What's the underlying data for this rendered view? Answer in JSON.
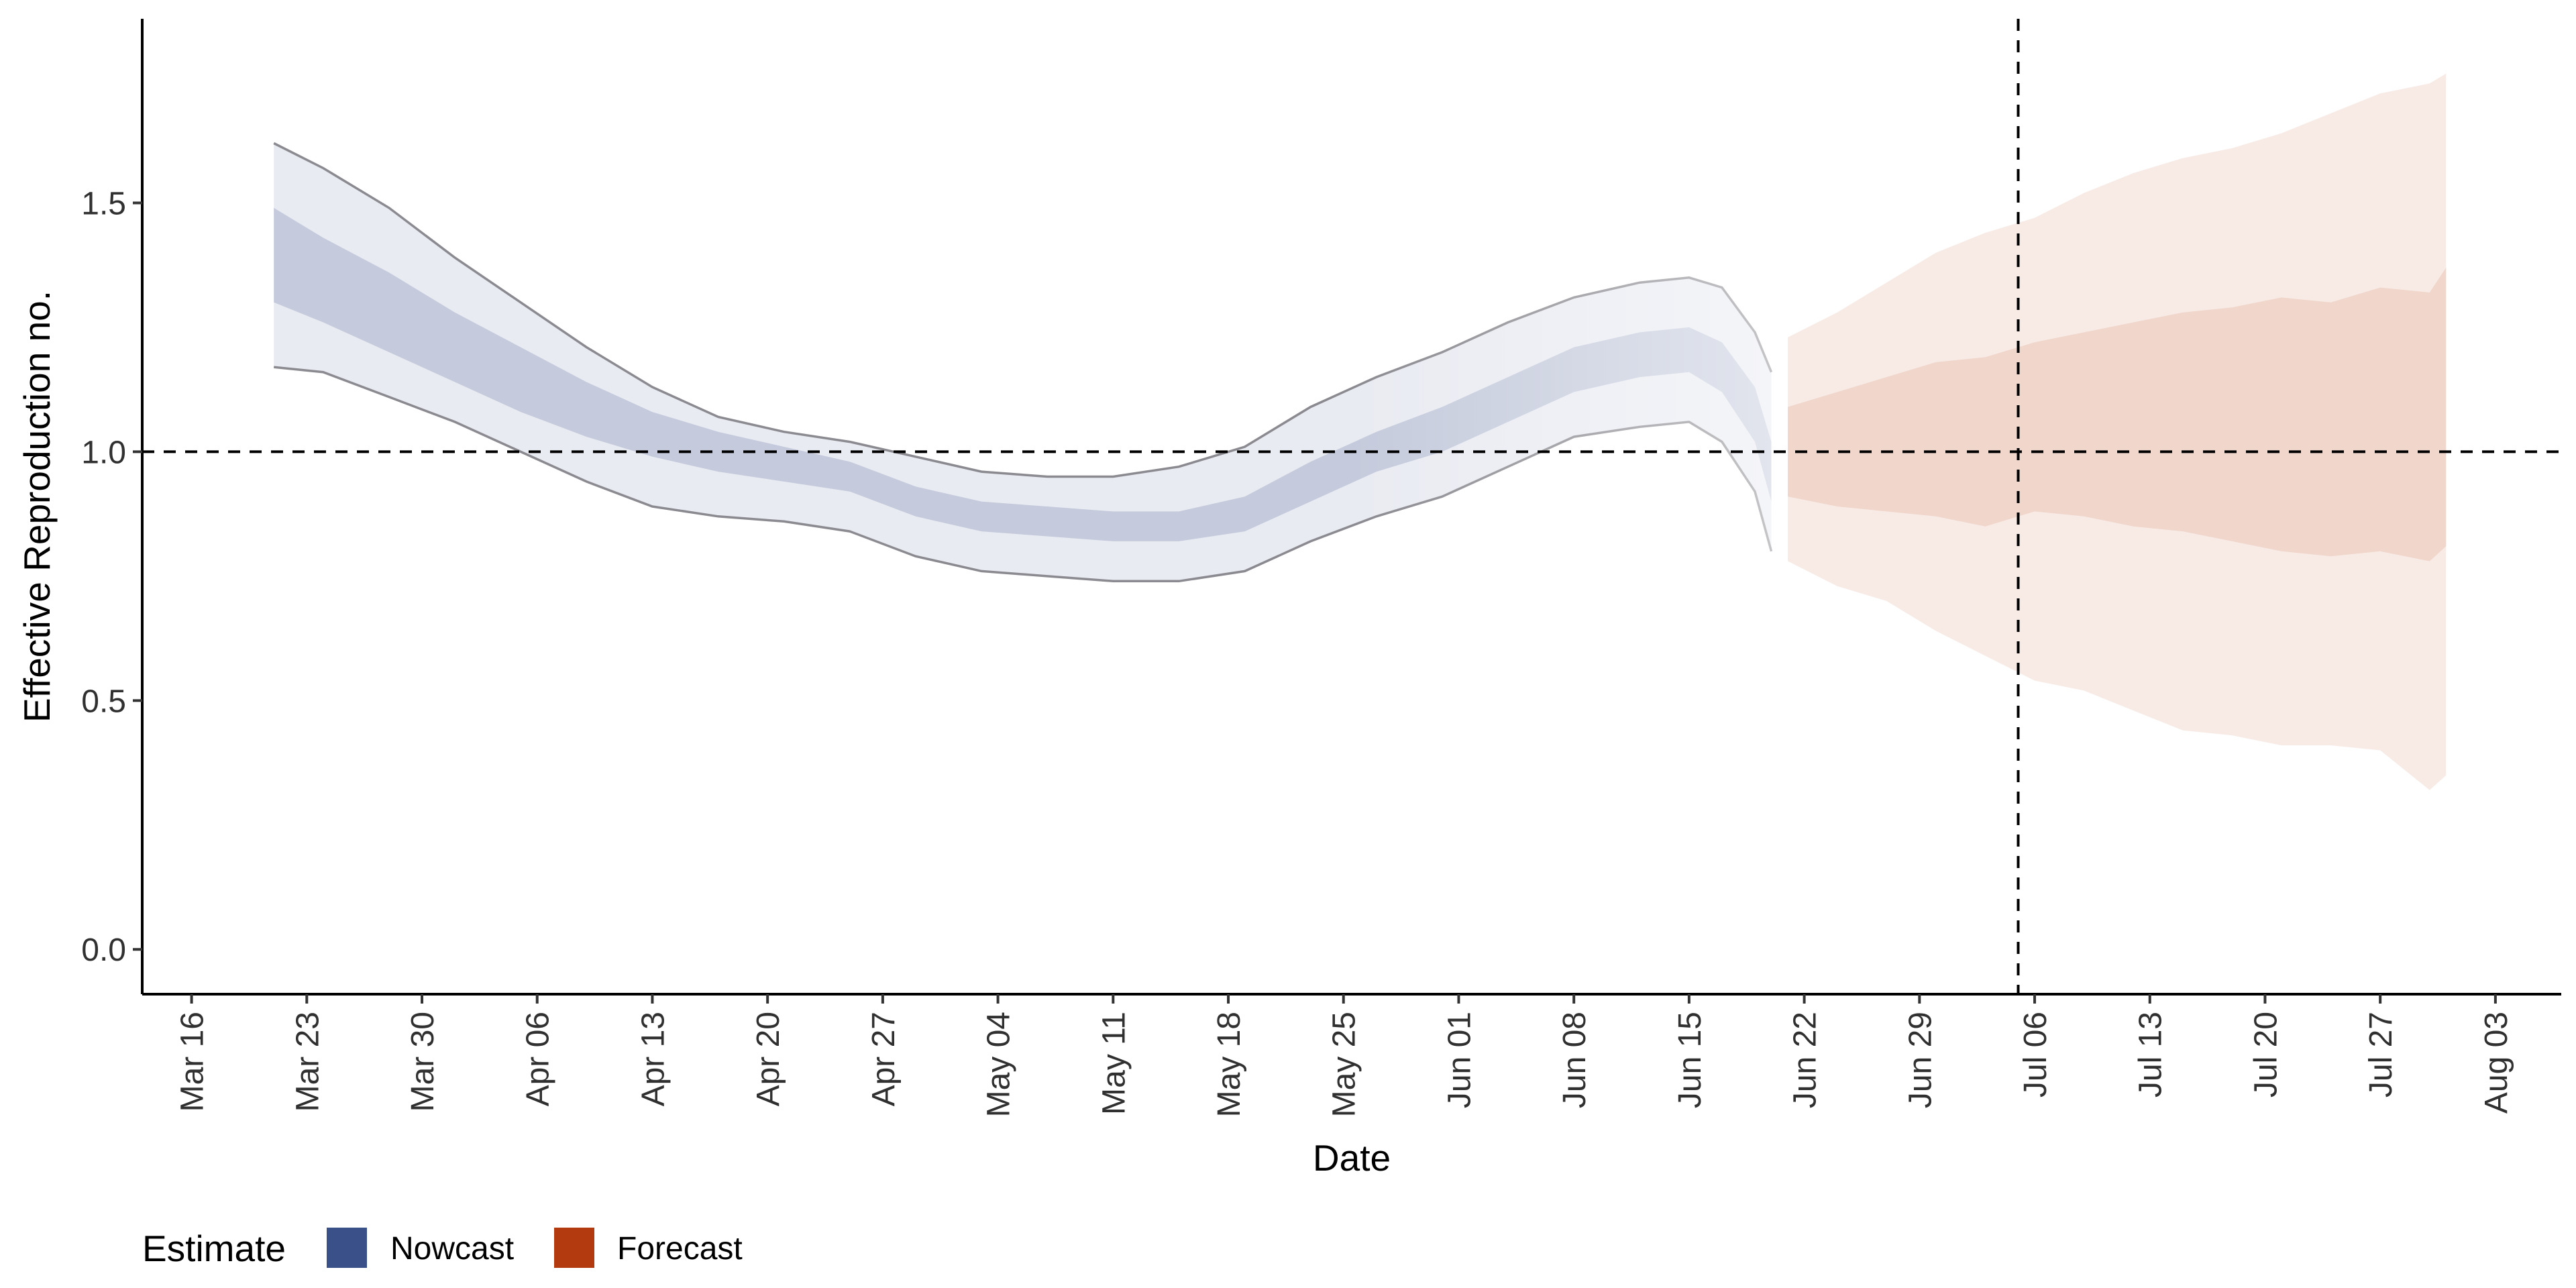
{
  "chart_data": {
    "type": "area",
    "title": "",
    "xlabel": "Date",
    "ylabel": "Effective Reproduction no.",
    "x_axis": {
      "type": "date",
      "year": 2020,
      "range": [
        "2020-03-13",
        "2020-08-07"
      ],
      "ticks": [
        "2020-03-16",
        "2020-03-23",
        "2020-03-30",
        "2020-04-06",
        "2020-04-13",
        "2020-04-20",
        "2020-04-27",
        "2020-05-04",
        "2020-05-11",
        "2020-05-18",
        "2020-05-25",
        "2020-06-01",
        "2020-06-08",
        "2020-06-15",
        "2020-06-22",
        "2020-06-29",
        "2020-07-06",
        "2020-07-13",
        "2020-07-20",
        "2020-07-27",
        "2020-08-03"
      ],
      "tick_labels": [
        "Mar 16",
        "Mar 23",
        "Mar 30",
        "Apr 06",
        "Apr 13",
        "Apr 20",
        "Apr 27",
        "May 04",
        "May 11",
        "May 18",
        "May 25",
        "Jun 01",
        "Jun 08",
        "Jun 15",
        "Jun 22",
        "Jun 29",
        "Jul 06",
        "Jul 13",
        "Jul 20",
        "Jul 27",
        "Aug 03"
      ]
    },
    "y_axis": {
      "range": [
        -0.09,
        1.87
      ],
      "ticks": [
        0.0,
        0.5,
        1.0,
        1.5
      ],
      "tick_labels": [
        "0.0",
        "0.5",
        "1.0",
        "1.5"
      ]
    },
    "grid": false,
    "reference_lines": [
      {
        "axis": "y",
        "value": 1.0,
        "style": "dashed"
      },
      {
        "axis": "x",
        "value": "2020-07-05",
        "style": "dashed"
      }
    ],
    "legend": {
      "title": "Estimate",
      "position": "bottom-left",
      "entries": [
        {
          "name": "Nowcast",
          "color": "#3a5089"
        },
        {
          "name": "Forecast",
          "color": "#b33a0f"
        }
      ]
    },
    "series": [
      {
        "name": "Nowcast",
        "color": "#3a5089",
        "x": [
          "2020-03-21",
          "2020-03-24",
          "2020-03-28",
          "2020-04-01",
          "2020-04-05",
          "2020-04-09",
          "2020-04-13",
          "2020-04-17",
          "2020-04-21",
          "2020-04-25",
          "2020-04-29",
          "2020-05-03",
          "2020-05-07",
          "2020-05-11",
          "2020-05-15",
          "2020-05-19",
          "2020-05-23",
          "2020-05-27",
          "2020-05-31",
          "2020-06-04",
          "2020-06-08",
          "2020-06-12",
          "2020-06-15",
          "2020-06-17",
          "2020-06-19",
          "2020-06-20"
        ],
        "lower_90": [
          1.17,
          1.16,
          1.11,
          1.06,
          1.0,
          0.94,
          0.89,
          0.87,
          0.86,
          0.84,
          0.79,
          0.76,
          0.75,
          0.74,
          0.74,
          0.76,
          0.82,
          0.87,
          0.91,
          0.97,
          1.03,
          1.05,
          1.06,
          1.02,
          0.92,
          0.8
        ],
        "lower_50": [
          1.3,
          1.26,
          1.2,
          1.14,
          1.08,
          1.03,
          0.99,
          0.96,
          0.94,
          0.92,
          0.87,
          0.84,
          0.83,
          0.82,
          0.82,
          0.84,
          0.9,
          0.96,
          1.0,
          1.06,
          1.12,
          1.15,
          1.16,
          1.12,
          1.02,
          0.9
        ],
        "upper_50": [
          1.49,
          1.43,
          1.36,
          1.28,
          1.21,
          1.14,
          1.08,
          1.04,
          1.01,
          0.98,
          0.93,
          0.9,
          0.89,
          0.88,
          0.88,
          0.91,
          0.98,
          1.04,
          1.09,
          1.15,
          1.21,
          1.24,
          1.25,
          1.22,
          1.13,
          1.02
        ],
        "upper_90": [
          1.62,
          1.57,
          1.49,
          1.39,
          1.3,
          1.21,
          1.13,
          1.07,
          1.04,
          1.02,
          0.99,
          0.96,
          0.95,
          0.95,
          0.97,
          1.01,
          1.09,
          1.15,
          1.2,
          1.26,
          1.31,
          1.34,
          1.35,
          1.33,
          1.24,
          1.16
        ]
      },
      {
        "name": "Forecast",
        "color": "#b33a0f",
        "x": [
          "2020-06-21",
          "2020-06-24",
          "2020-06-27",
          "2020-06-30",
          "2020-07-03",
          "2020-07-06",
          "2020-07-09",
          "2020-07-12",
          "2020-07-15",
          "2020-07-18",
          "2020-07-21",
          "2020-07-24",
          "2020-07-27",
          "2020-07-30",
          "2020-07-31"
        ],
        "lower_90": [
          0.78,
          0.73,
          0.7,
          0.64,
          0.59,
          0.54,
          0.52,
          0.48,
          0.44,
          0.43,
          0.41,
          0.41,
          0.4,
          0.32,
          0.35
        ],
        "lower_50": [
          0.91,
          0.89,
          0.88,
          0.87,
          0.85,
          0.88,
          0.87,
          0.85,
          0.84,
          0.82,
          0.8,
          0.79,
          0.8,
          0.78,
          0.81
        ],
        "upper_50": [
          1.09,
          1.12,
          1.15,
          1.18,
          1.19,
          1.22,
          1.24,
          1.26,
          1.28,
          1.29,
          1.31,
          1.3,
          1.33,
          1.32,
          1.37
        ],
        "upper_90": [
          1.23,
          1.28,
          1.34,
          1.4,
          1.44,
          1.47,
          1.52,
          1.56,
          1.59,
          1.61,
          1.64,
          1.68,
          1.72,
          1.74,
          1.76
        ]
      }
    ]
  }
}
